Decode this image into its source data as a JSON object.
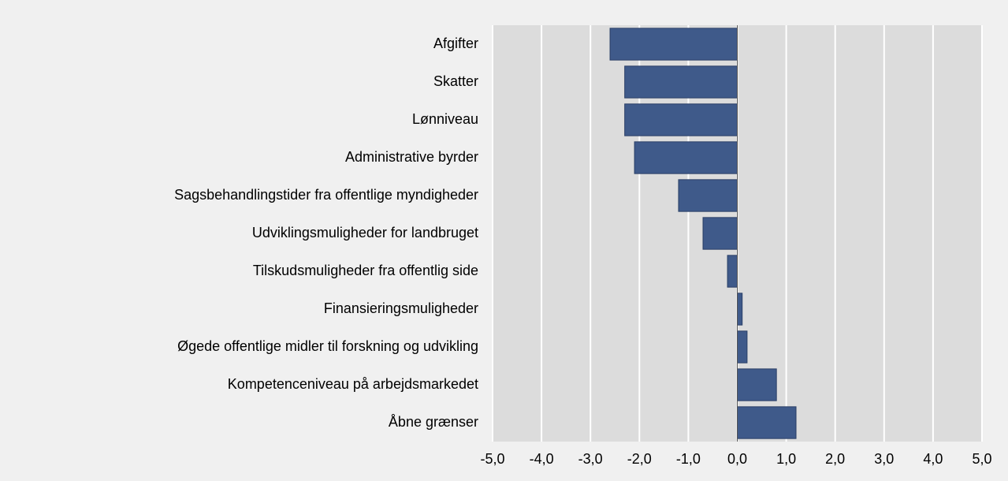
{
  "chart_data": {
    "type": "barh",
    "categories": [
      "Afgifter",
      "Skatter",
      "Lønniveau",
      "Administrative byrder",
      "Sagsbehandlingstider fra offentlige myndigheder",
      "Udviklingsmuligheder for landbruget",
      "Tilskudsmuligheder fra offentlig side",
      "Finansieringsmuligheder",
      "Øgede offentlige midler til forskning og udvikling",
      "Kompetenceniveau på arbejdsmarkedet",
      "Åbne grænser"
    ],
    "values": [
      -2.6,
      -2.3,
      -2.3,
      -2.1,
      -1.2,
      -0.7,
      -0.2,
      0.1,
      0.2,
      0.8,
      1.2
    ],
    "color": "#3f5a8a",
    "xlim": [
      -5,
      5
    ],
    "xticks": [
      {
        "value": -5,
        "label": "-5,0"
      },
      {
        "value": -4,
        "label": "-4,0"
      },
      {
        "value": -3,
        "label": "-3,0"
      },
      {
        "value": -2,
        "label": "-2,0"
      },
      {
        "value": -1,
        "label": "-1,0"
      },
      {
        "value": 0,
        "label": "0,0"
      },
      {
        "value": 1,
        "label": "1,0"
      },
      {
        "value": 2,
        "label": "2,0"
      },
      {
        "value": 3,
        "label": "3,0"
      },
      {
        "value": 4,
        "label": "4,0"
      },
      {
        "value": 5,
        "label": "5,0"
      }
    ],
    "grid": true
  }
}
